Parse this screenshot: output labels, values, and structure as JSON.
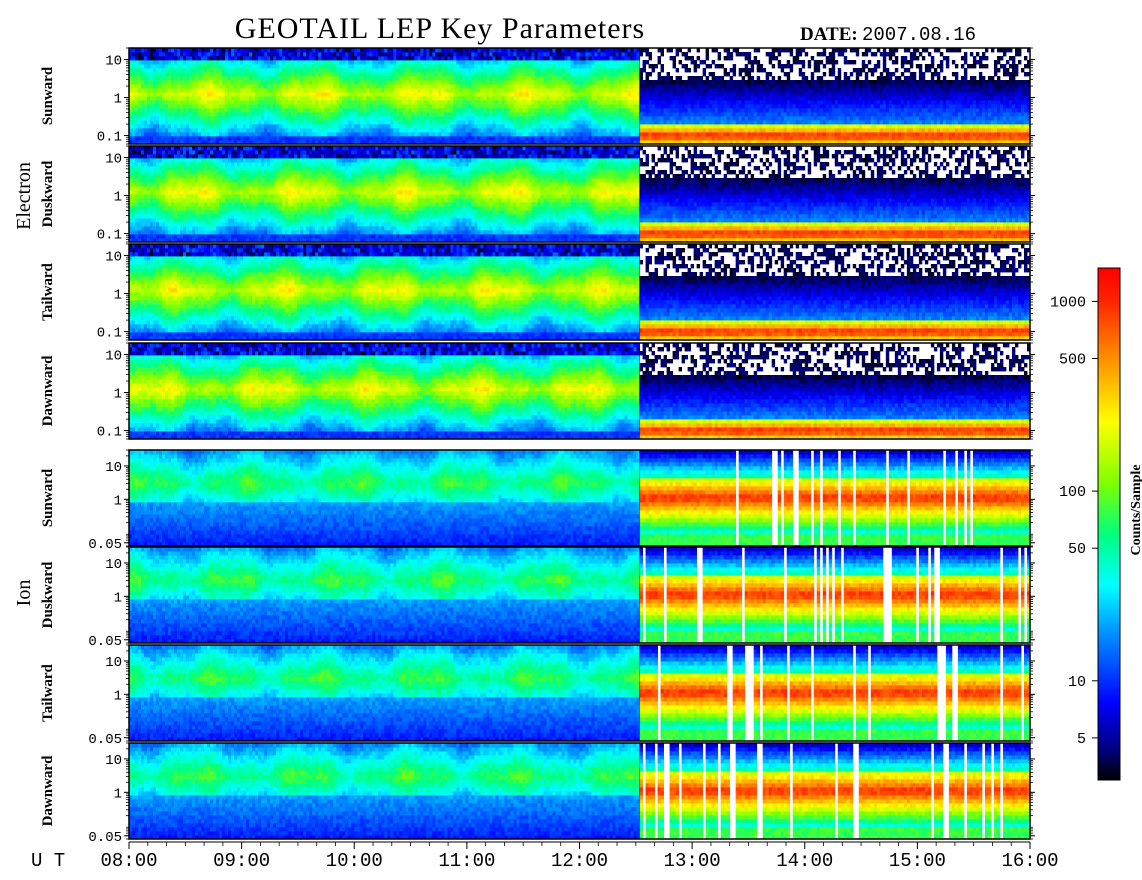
{
  "chart_data": {
    "type": "heatmap",
    "title": "GEOTAIL LEP Key Parameters",
    "date_label": "DATE:",
    "date": "2007.08.16",
    "x_axis_prefix": "U T",
    "x_ticks": [
      "08:00",
      "09:00",
      "10:00",
      "11:00",
      "12:00",
      "13:00",
      "14:00",
      "15:00",
      "16:00"
    ],
    "xlim": [
      "08:00",
      "16:00"
    ],
    "groups": [
      {
        "name": "Electron",
        "y_ticks": [
          "10",
          "1",
          "0.1"
        ],
        "y_log": true,
        "ylim": [
          0.06,
          20
        ],
        "panels": [
          "Sunward",
          "Duskward",
          "Tailward",
          "Dawnward"
        ]
      },
      {
        "name": "Ion",
        "y_ticks": [
          "10",
          "1",
          "0.05"
        ],
        "y_log": true,
        "ylim": [
          0.04,
          30
        ],
        "panels": [
          "Sunward",
          "Duskward",
          "Tailward",
          "Dawnward"
        ]
      }
    ],
    "colorbar": {
      "label": "Counts/Sample",
      "scale": "log",
      "range": [
        3,
        1500
      ],
      "ticks": [
        "1000",
        "500",
        "100",
        "50",
        "10",
        "5"
      ],
      "colors": [
        "#000000",
        "#00007f",
        "#0000ff",
        "#00a0ff",
        "#00ffff",
        "#00ff7f",
        "#7fff00",
        "#ffff00",
        "#ff8000",
        "#ff2000",
        "#ff0000"
      ]
    },
    "regimes": [
      {
        "from": "08:00",
        "to": "12:32",
        "electron": "broad 0.3–5 keV, green/yellow, ~100–300 counts",
        "ion": "broad 0.5–20 keV, green/cyan"
      },
      {
        "from": "12:32",
        "to": "16:00",
        "electron": "narrow low-energy band ~0.1 keV, red, >1000 counts",
        "ion": "0.1–3 keV band, red/orange, with data gaps"
      }
    ]
  }
}
